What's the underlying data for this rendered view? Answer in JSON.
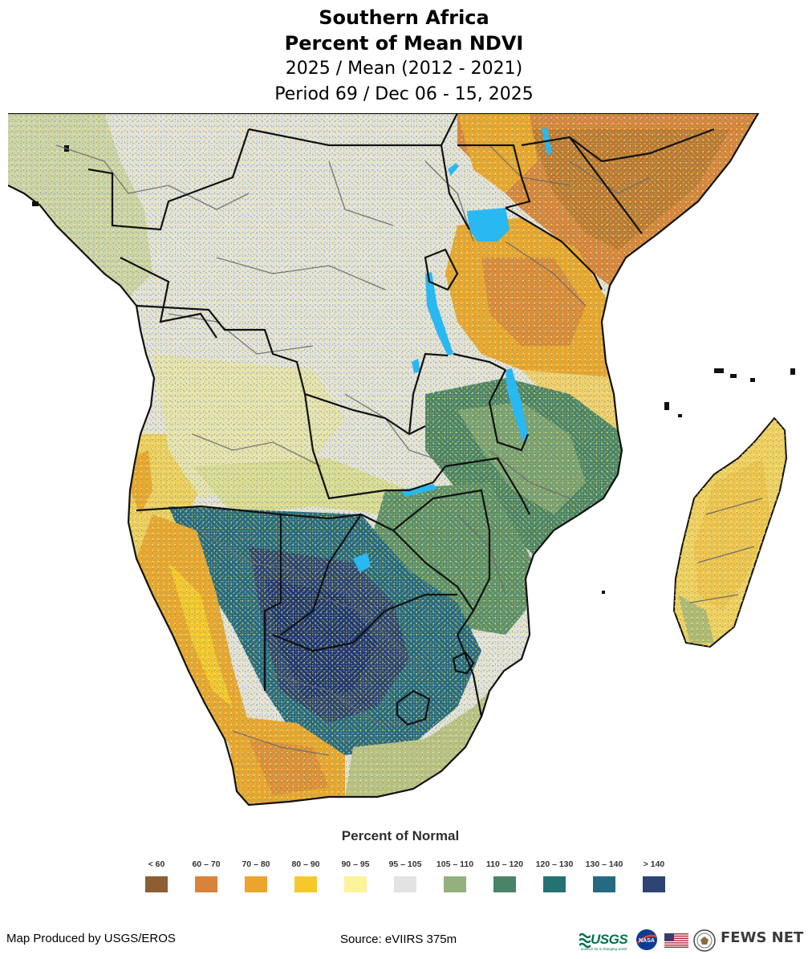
{
  "title": {
    "line1": "Southern Africa",
    "line2": "Percent of Mean NDVI",
    "line3": "2025 / Mean (2012 - 2021)",
    "line4": "Period 69 / Dec 06 - 15, 2025"
  },
  "legend": {
    "title": "Percent of Normal",
    "items": [
      {
        "label": "< 60",
        "color": "#8c5e32"
      },
      {
        "label": "60 – 70",
        "color": "#d8823c"
      },
      {
        "label": "70 – 80",
        "color": "#eba52d"
      },
      {
        "label": "80 – 90",
        "color": "#f7c82a"
      },
      {
        "label": "90 – 95",
        "color": "#fdf39a"
      },
      {
        "label": "95 – 105",
        "color": "#e3e3e3"
      },
      {
        "label": "105 – 110",
        "color": "#94b07e"
      },
      {
        "label": "110 – 120",
        "color": "#4a8468"
      },
      {
        "label": "120 – 130",
        "color": "#267272"
      },
      {
        "label": "130 – 140",
        "color": "#266a82"
      },
      {
        "label": "> 140",
        "color": "#2c4573"
      }
    ]
  },
  "footer": {
    "producer": "Map Produced by USGS/EROS",
    "source": "Source: eVIIRS 375m"
  },
  "logos": {
    "usgs": "USGS",
    "usgs_tagline": "science for a changing world",
    "nasa": "NASA",
    "fews_net": "FEWS NET"
  },
  "map": {
    "land_color": "#e3e3e3",
    "water_color": "#29b8f2",
    "border_color": "#111111",
    "admin_border_color": "#6b6b6b"
  }
}
